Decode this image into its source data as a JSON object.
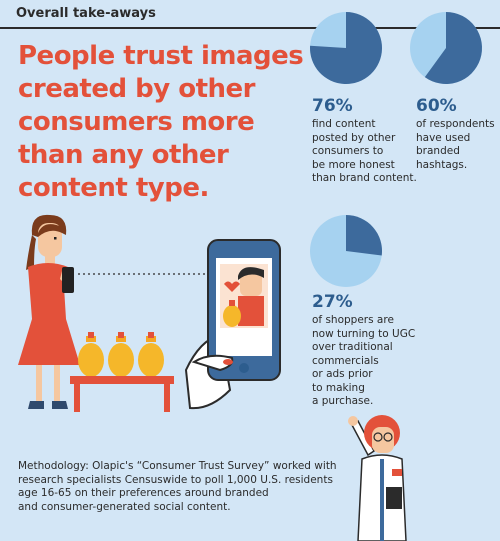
{
  "header": {
    "title": "Overall take-aways"
  },
  "headline": "People trust images created by other consumers more than any other content type.",
  "stats": [
    {
      "percent": "76%",
      "value": 0.76,
      "text": "find content\nposted by other\nconsumers to\nbe more honest\nthan brand content."
    },
    {
      "percent": "60%",
      "value": 0.6,
      "text": "of respondents\nhave used\nbranded\nhashtags."
    },
    {
      "percent": "27%",
      "value": 0.27,
      "text": "of shoppers are\nnow turning to UGC\nover traditional\ncommercials\nor ads prior\nto making\na purchase."
    }
  ],
  "methodology": "Methodology: Olapic's “Consumer Trust Survey” worked with\nresearch specialists Censuswide to poll 1,000 U.S. residents\nage 16-65 on their preferences around branded\n and consumer-generated social content.",
  "colors": {
    "background": "#d3e6f6",
    "pie_light": "#a6d2f0",
    "pie_dark": "#3d6a9c",
    "headline": "#e3513a",
    "percent": "#2d5d8e"
  }
}
